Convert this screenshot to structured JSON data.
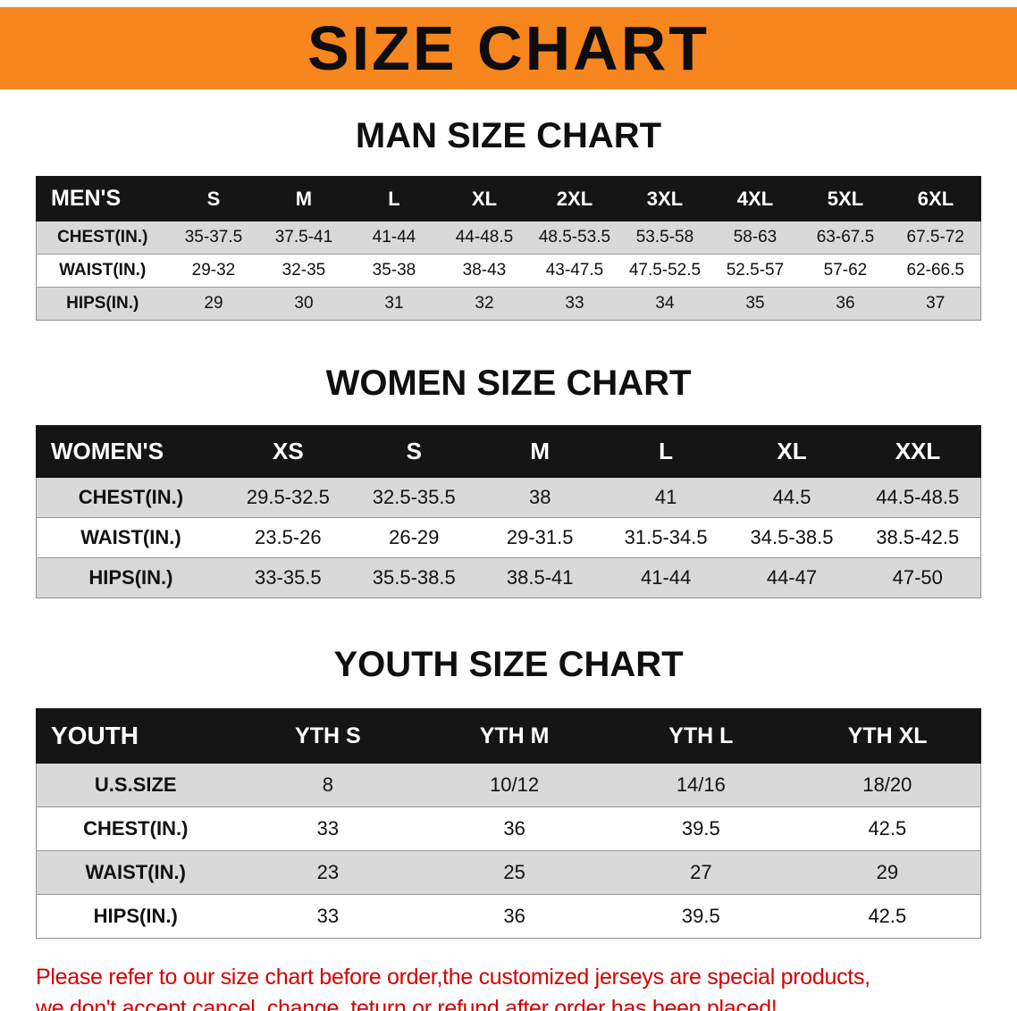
{
  "banner": {
    "title": "SIZE CHART"
  },
  "colors": {
    "banner_bg": "#f6861d",
    "table_header_bg": "#151515",
    "stripe_row": "#d9d9d9",
    "note_text": "#d60000"
  },
  "sections": {
    "men": {
      "heading": "MAN SIZE CHART",
      "table": {
        "header": [
          "MEN'S",
          "S",
          "M",
          "L",
          "XL",
          "2XL",
          "3XL",
          "4XL",
          "5XL",
          "6XL"
        ],
        "rows": [
          [
            "CHEST(IN.)",
            "35-37.5",
            "37.5-41",
            "41-44",
            "44-48.5",
            "48.5-53.5",
            "53.5-58",
            "58-63",
            "63-67.5",
            "67.5-72"
          ],
          [
            "WAIST(IN.)",
            "29-32",
            "32-35",
            "35-38",
            "38-43",
            "43-47.5",
            "47.5-52.5",
            "52.5-57",
            "57-62",
            "62-66.5"
          ],
          [
            "HIPS(IN.)",
            "29",
            "30",
            "31",
            "32",
            "33",
            "34",
            "35",
            "36",
            "37"
          ]
        ]
      }
    },
    "women": {
      "heading": "WOMEN SIZE CHART",
      "table": {
        "header": [
          "WOMEN'S",
          "XS",
          "S",
          "M",
          "L",
          "XL",
          "XXL"
        ],
        "rows": [
          [
            "CHEST(IN.)",
            "29.5-32.5",
            "32.5-35.5",
            "38",
            "41",
            "44.5",
            "44.5-48.5"
          ],
          [
            "WAIST(IN.)",
            "23.5-26",
            "26-29",
            "29-31.5",
            "31.5-34.5",
            "34.5-38.5",
            "38.5-42.5"
          ],
          [
            "HIPS(IN.)",
            "33-35.5",
            "35.5-38.5",
            "38.5-41",
            "41-44",
            "44-47",
            "47-50"
          ]
        ]
      }
    },
    "youth": {
      "heading": "YOUTH SIZE CHART",
      "table": {
        "header": [
          "YOUTH",
          "YTH S",
          "YTH M",
          "YTH L",
          "YTH XL"
        ],
        "rows": [
          [
            "U.S.SIZE",
            "8",
            "10/12",
            "14/16",
            "18/20"
          ],
          [
            "CHEST(IN.)",
            "33",
            "36",
            "39.5",
            "42.5"
          ],
          [
            "WAIST(IN.)",
            "23",
            "25",
            "27",
            "29"
          ],
          [
            "HIPS(IN.)",
            "33",
            "36",
            "39.5",
            "42.5"
          ]
        ]
      }
    }
  },
  "note": {
    "line1": "Please refer to our size chart before order,the customized jerseys are special products,",
    "line2": "we don't accept cancel, change, teturn or refund after order has been placed!"
  }
}
